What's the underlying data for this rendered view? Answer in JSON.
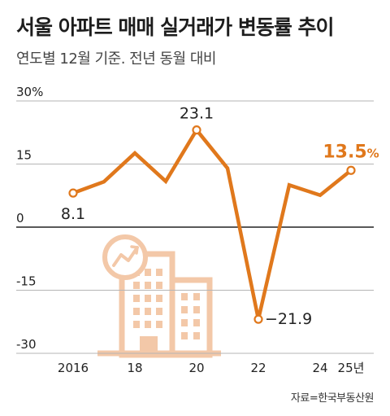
{
  "header": {
    "title": "서울 아파트 매매 실거래가 변동률 추이",
    "subtitle": "연도별 12월 기준. 전년 동월 대비"
  },
  "source": "자료=한국부동산원",
  "colors": {
    "line": "#e0781c",
    "illustration": "#f3c8a8",
    "grid": "#b5b5b5",
    "axis_zero": "#222222"
  },
  "illustration": {
    "icon": "building-with-growth-chart-icon"
  },
  "chart_data": {
    "type": "line",
    "x": [
      2016,
      2017,
      2018,
      2019,
      2020,
      2021,
      2022,
      2023,
      2024,
      2025
    ],
    "values": [
      8.1,
      10.8,
      17.6,
      10.9,
      23.1,
      14.0,
      -21.9,
      10.0,
      7.6,
      13.5
    ],
    "ylim": [
      -30,
      30
    ],
    "yticks": [
      30,
      15,
      0,
      -15,
      -30
    ],
    "ytick_labels": [
      "30%",
      "15",
      "0",
      "-15",
      "-30"
    ],
    "xticks": [
      2016,
      2018,
      2020,
      2022,
      2024,
      2025
    ],
    "xtick_labels": [
      "2016",
      "18",
      "20",
      "22",
      "24",
      "25년"
    ],
    "data_labels": [
      {
        "x": 2016,
        "text": "8.1"
      },
      {
        "x": 2020,
        "text": "23.1"
      },
      {
        "x": 2022,
        "text": "−21.9"
      },
      {
        "x": 2025,
        "text": "13.5",
        "unit": "%",
        "highlight": true
      }
    ],
    "grid": true
  }
}
